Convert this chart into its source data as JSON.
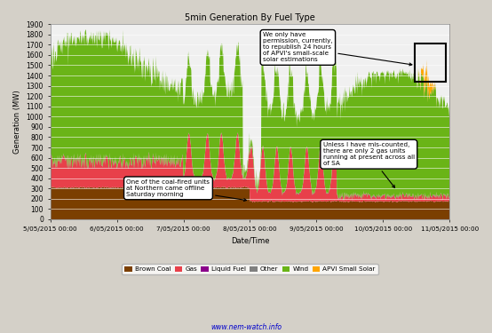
{
  "title": "5min Generation By Fuel Type",
  "xlabel": "Date/Time",
  "ylabel": "Generation (MW)",
  "background_color": "#d4d0c8",
  "plot_bg_color": "#f0f0f0",
  "x_start": 0,
  "x_end": 864,
  "x_ticks": [
    0,
    144,
    288,
    432,
    576,
    720,
    864
  ],
  "x_tick_labels": [
    "5/05/2015 00:00",
    "6/05/2015 00:00",
    "7/05/2015 00:00",
    "8/05/2015 00:00",
    "9/05/2015 00:00",
    "10/05/2015 00:00",
    "11/05/2015 00:00"
  ],
  "ylim": [
    0,
    1900
  ],
  "y_ticks": [
    0,
    100,
    200,
    300,
    400,
    500,
    600,
    700,
    800,
    900,
    1000,
    1100,
    1200,
    1300,
    1400,
    1500,
    1600,
    1700,
    1800,
    1900
  ],
  "colors": {
    "brown_coal": "#7b3f00",
    "gas": "#e8404a",
    "liquid_fuel": "#8b008b",
    "other": "#808080",
    "wind": "#6ab417",
    "solar": "#ffa500"
  },
  "url_text": "www.nem-watch.info",
  "annotation1_text": "We only have\npermission, currently,\nto republish 24 hours\nof APVI's small-scale\nsolar estimations",
  "annotation2_text": "Unless I have mis-counted,\nthere are only 2 gas units\nrunning at present across all\nof SA",
  "annotation3_text": "One of the coal-fired units\nat Northern came offline\nSaturday morning"
}
